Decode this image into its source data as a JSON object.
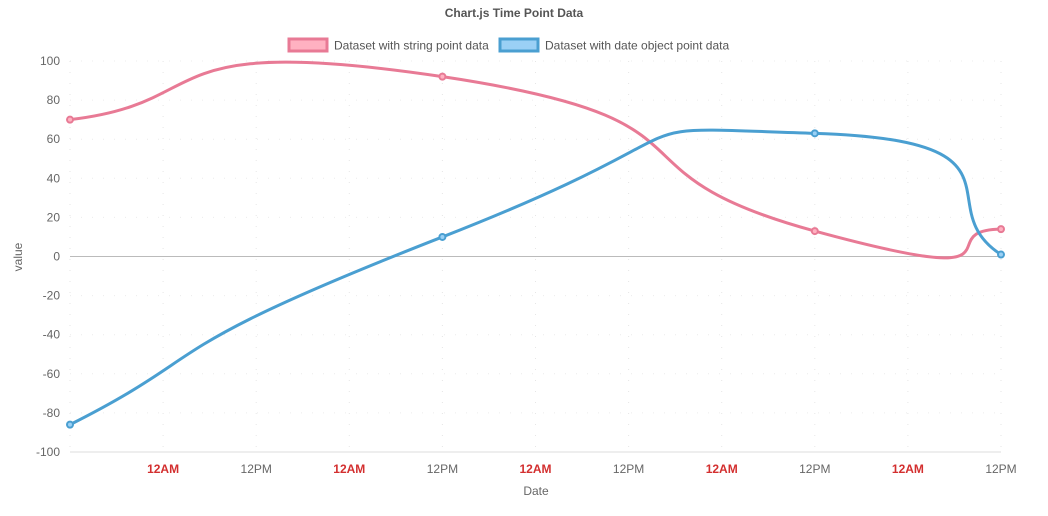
{
  "chart_data": {
    "type": "line",
    "title": "Chart.js Time Point Data",
    "xlabel": "Date",
    "ylabel": "value",
    "ylim": [
      -100,
      100
    ],
    "yticks": [
      100,
      80,
      60,
      40,
      20,
      0,
      -20,
      -40,
      -60,
      -80,
      -100
    ],
    "legend_position": "top",
    "grid": true,
    "x_ticks": [
      "12AM",
      "12PM",
      "12AM",
      "12PM",
      "12AM",
      "12PM",
      "12AM",
      "12PM",
      "12AM",
      "12PM"
    ],
    "x_tick_major_color": "#d32f2f",
    "series": [
      {
        "name": "Dataset with string point data",
        "color": "#e87a95",
        "fill": "#ffb1c1",
        "points": [
          {
            "x": 0.0,
            "y": 70
          },
          {
            "x": 2.0,
            "y": 92
          },
          {
            "x": 4.0,
            "y": 13
          },
          {
            "x": 5.0,
            "y": 14
          }
        ]
      },
      {
        "name": "Dataset with date object point data",
        "color": "#4a9fd1",
        "fill": "#9ad0f5",
        "points": [
          {
            "x": 0.0,
            "y": -86
          },
          {
            "x": 2.0,
            "y": 10
          },
          {
            "x": 4.0,
            "y": 63
          },
          {
            "x": 5.0,
            "y": 1
          }
        ]
      }
    ]
  }
}
